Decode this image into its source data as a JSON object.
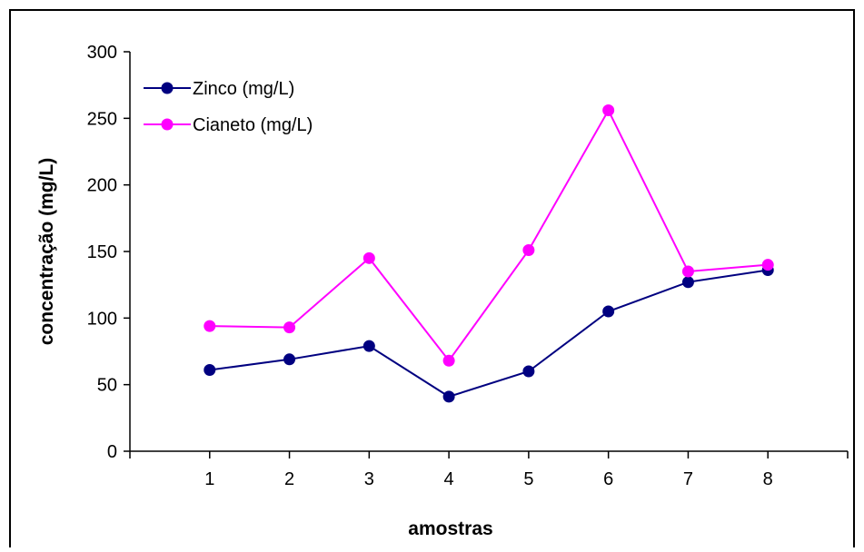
{
  "chart_data": {
    "type": "line",
    "title": "",
    "xlabel": "amostras",
    "ylabel": "concentração (mg/L)",
    "categories": [
      "1",
      "2",
      "3",
      "4",
      "5",
      "6",
      "7",
      "8"
    ],
    "ylim": [
      0,
      300
    ],
    "yticks": [
      "0",
      "50",
      "100",
      "150",
      "200",
      "250",
      "300"
    ],
    "grid": false,
    "legend_position": "top-left",
    "series": [
      {
        "name": "Zinco   (mg/L)",
        "color": "#000080",
        "values": [
          61,
          69,
          79,
          41,
          60,
          105,
          127,
          136
        ]
      },
      {
        "name": "Cianeto  (mg/L)",
        "color": "#FF00FF",
        "values": [
          94,
          93,
          145,
          68,
          151,
          256,
          135,
          140
        ]
      }
    ]
  }
}
